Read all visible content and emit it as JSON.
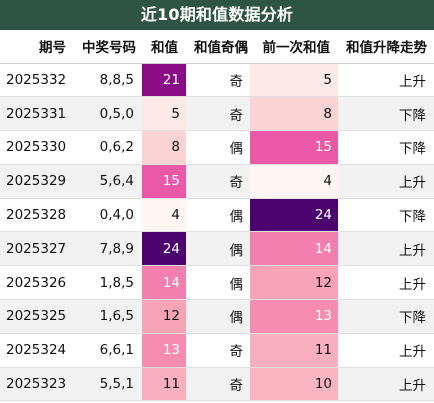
{
  "title": "近10期和值数据分析",
  "columns": [
    "期号",
    "中奖号码",
    "和值",
    "和值奇偶",
    "前一次和值",
    "和值升降走势"
  ],
  "rows": [
    {
      "issue": "2025332",
      "draw": "8,8,5",
      "sum": "21",
      "parity": "奇",
      "prev_sum": "5",
      "trend": "上升"
    },
    {
      "issue": "2025331",
      "draw": "0,5,0",
      "sum": "5",
      "parity": "奇",
      "prev_sum": "8",
      "trend": "下降"
    },
    {
      "issue": "2025330",
      "draw": "0,6,2",
      "sum": "8",
      "parity": "偶",
      "prev_sum": "15",
      "trend": "下降"
    },
    {
      "issue": "2025329",
      "draw": "5,6,4",
      "sum": "15",
      "parity": "奇",
      "prev_sum": "4",
      "trend": "上升"
    },
    {
      "issue": "2025328",
      "draw": "0,4,0",
      "sum": "4",
      "parity": "偶",
      "prev_sum": "24",
      "trend": "下降"
    },
    {
      "issue": "2025327",
      "draw": "7,8,9",
      "sum": "24",
      "parity": "偶",
      "prev_sum": "14",
      "trend": "上升"
    },
    {
      "issue": "2025326",
      "draw": "1,8,5",
      "sum": "14",
      "parity": "偶",
      "prev_sum": "12",
      "trend": "上升"
    },
    {
      "issue": "2025325",
      "draw": "1,6,5",
      "sum": "12",
      "parity": "偶",
      "prev_sum": "13",
      "trend": "下降"
    },
    {
      "issue": "2025324",
      "draw": "6,6,1",
      "sum": "13",
      "parity": "奇",
      "prev_sum": "11",
      "trend": "上升"
    },
    {
      "issue": "2025323",
      "draw": "5,5,1",
      "sum": "11",
      "parity": "奇",
      "prev_sum": "10",
      "trend": "上升"
    }
  ],
  "heat_colors": {
    "4": "#fff5f3",
    "5": "#fde9e6",
    "8": "#fcd3d3",
    "10": "#fbb5c0",
    "11": "#f9afbd",
    "12": "#f9a3b6",
    "13": "#f68cb0",
    "14": "#f27fad",
    "15": "#ea58a8",
    "21": "#8a0c84",
    "24": "#4c036f"
  },
  "colors": {
    "title_bg": "#2e5446",
    "title_text": "#ffffff",
    "stripe": "#f2f2f2"
  }
}
